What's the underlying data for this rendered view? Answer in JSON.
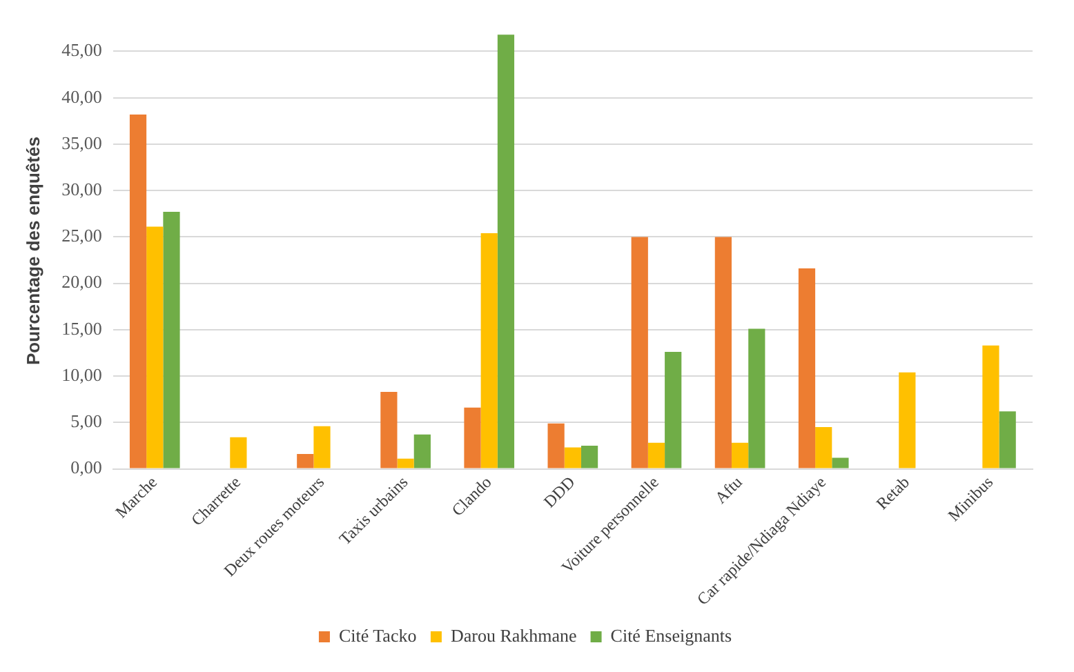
{
  "chart_data": {
    "type": "bar",
    "ylabel": "Pourcentage des enquêtés",
    "categories": [
      "Marche",
      "Charrette",
      "Deux roues moteurs",
      "Taxis urbains",
      "Clando",
      "DDD",
      "Voiture personnelle",
      "Aftu",
      "Car rapide/Ndiaga Ndiaye",
      "Retab",
      "Minibus"
    ],
    "series": [
      {
        "name": "Cité Tacko",
        "color": "#ed7d31",
        "values": [
          38.2,
          0,
          1.6,
          8.3,
          6.6,
          4.9,
          25.0,
          25.0,
          21.6,
          0,
          0
        ]
      },
      {
        "name": "Darou Rakhmane",
        "color": "#ffc000",
        "values": [
          26.1,
          3.4,
          4.6,
          1.1,
          25.4,
          2.3,
          2.8,
          2.8,
          4.5,
          10.4,
          13.3
        ]
      },
      {
        "name": "Cité Enseignants",
        "color": "#70ad47",
        "values": [
          27.7,
          0,
          0,
          3.7,
          46.8,
          2.5,
          12.6,
          15.1,
          1.2,
          0,
          6.2
        ]
      }
    ],
    "ylim": [
      0,
      47
    ],
    "yticks": [
      {
        "value": 0,
        "label": "0,00"
      },
      {
        "value": 5,
        "label": "5,00"
      },
      {
        "value": 10,
        "label": "10,00"
      },
      {
        "value": 15,
        "label": "15,00"
      },
      {
        "value": 20,
        "label": "20,00"
      },
      {
        "value": 25,
        "label": "25,00"
      },
      {
        "value": 30,
        "label": "30,00"
      },
      {
        "value": 35,
        "label": "35,00"
      },
      {
        "value": 40,
        "label": "40,00"
      },
      {
        "value": 45,
        "label": "45,00"
      }
    ],
    "grid": "y",
    "legend": "bottom"
  }
}
